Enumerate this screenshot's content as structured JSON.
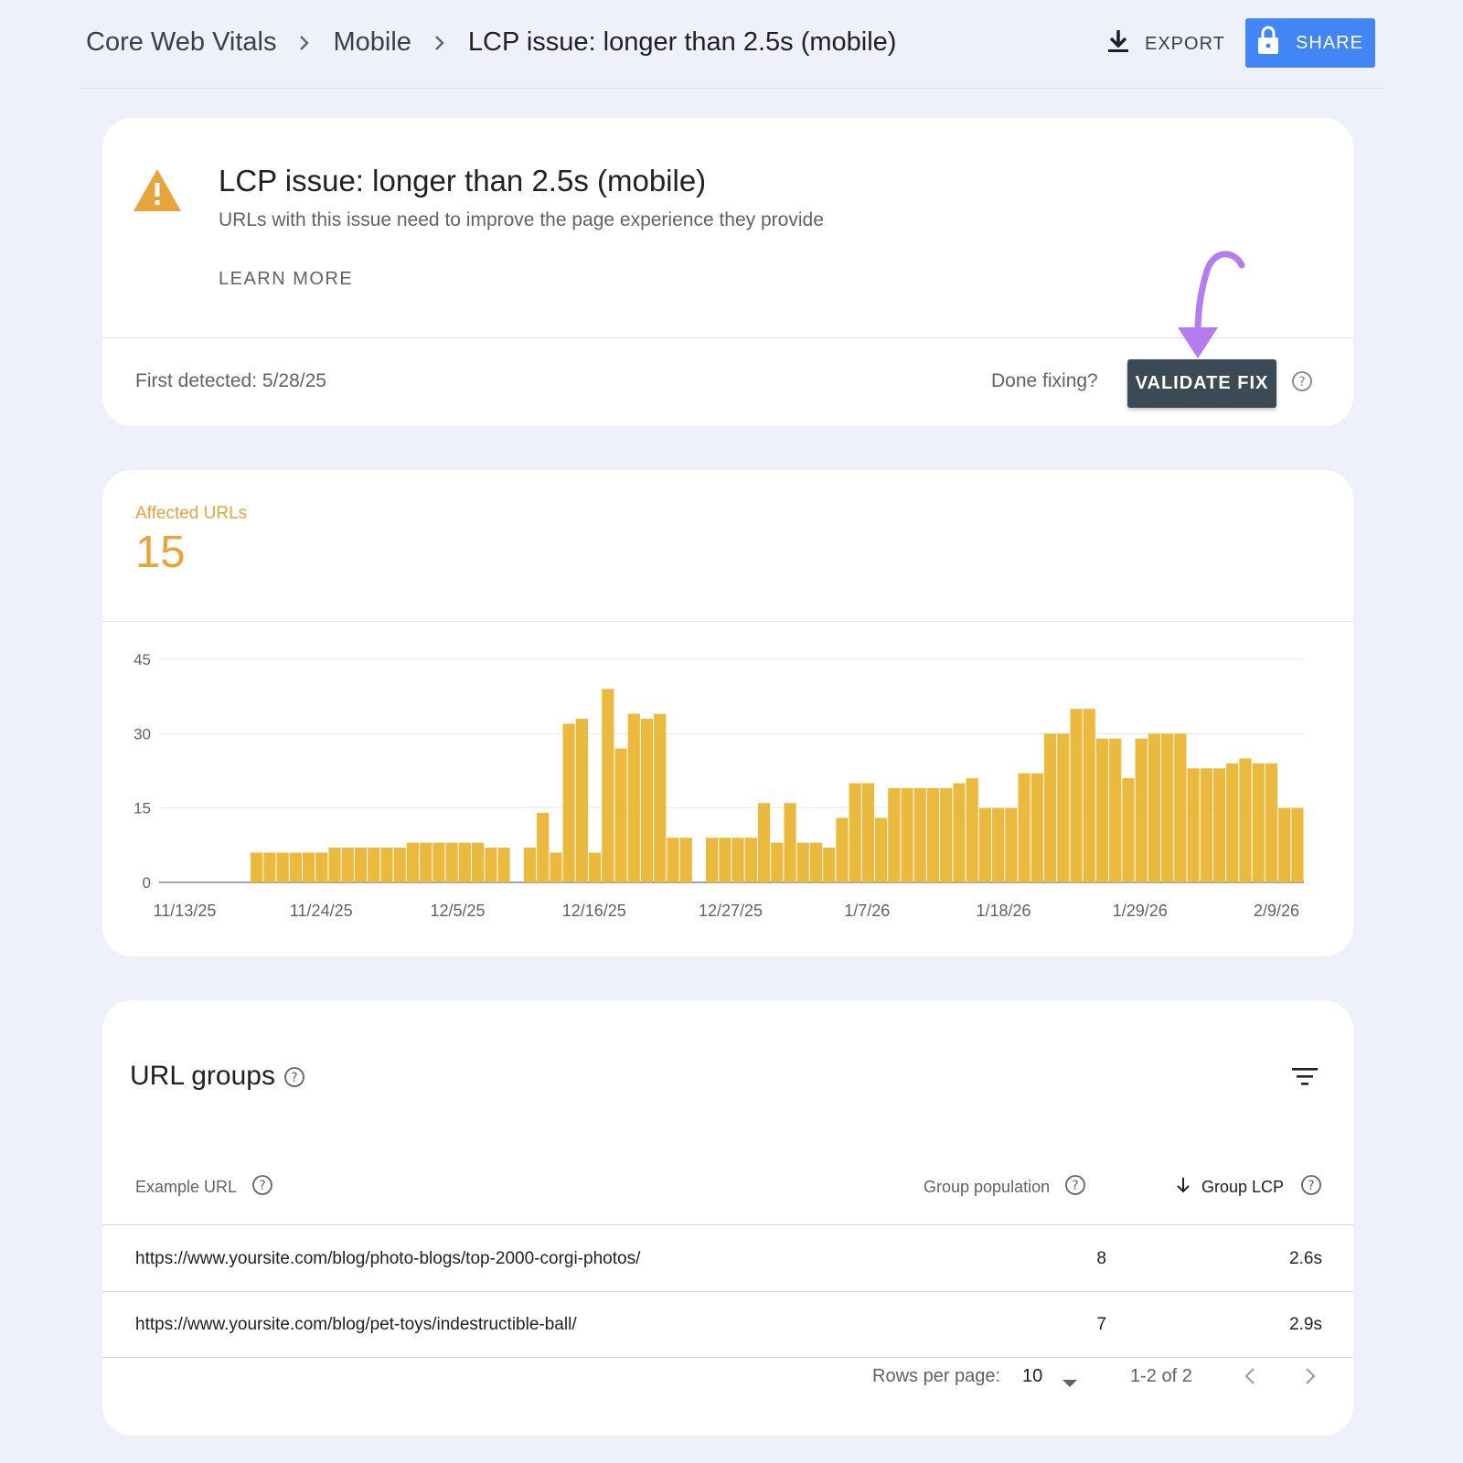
{
  "breadcrumb": {
    "items": [
      "Core Web Vitals",
      "Mobile",
      "LCP issue: longer than 2.5s (mobile)"
    ]
  },
  "toolbar": {
    "export_label": "EXPORT",
    "share_label": "SHARE"
  },
  "issue": {
    "title": "LCP issue: longer than 2.5s (mobile)",
    "description": "URLs with this issue need to improve the page experience they provide",
    "learn_more": "LEARN MORE",
    "first_detected": "First detected: 5/28/25",
    "done_fixing": "Done fixing?",
    "validate_label": "VALIDATE FIX"
  },
  "colors": {
    "warning": "#e8a33d",
    "bar": "#ecb93f",
    "share": "#4285f4",
    "validate": "#3c4a56",
    "annotation": "#b57bef"
  },
  "affected": {
    "label": "Affected URLs",
    "value": "15"
  },
  "chart_data": {
    "type": "bar",
    "y_ticks": [
      "45",
      "30",
      "15",
      "0"
    ],
    "ylim": [
      0,
      45
    ],
    "x_tick_labels": [
      "11/13/25",
      "11/24/25",
      "12/5/25",
      "12/16/25",
      "12/27/25",
      "1/7/26",
      "1/18/26",
      "1/29/26",
      "2/9/26"
    ],
    "values": [
      0,
      0,
      0,
      0,
      0,
      0,
      0,
      6,
      6,
      6,
      6,
      6,
      6,
      7,
      7,
      7,
      7,
      7,
      7,
      8,
      8,
      8,
      8,
      8,
      8,
      7,
      7,
      0,
      7,
      14,
      6,
      32,
      33,
      6,
      39,
      27,
      34,
      33,
      34,
      9,
      9,
      0,
      9,
      9,
      9,
      9,
      16,
      8,
      16,
      8,
      8,
      7,
      13,
      20,
      20,
      13,
      19,
      19,
      19,
      19,
      19,
      20,
      21,
      15,
      15,
      15,
      22,
      22,
      30,
      30,
      35,
      35,
      29,
      29,
      21,
      29,
      30,
      30,
      30,
      23,
      23,
      23,
      24,
      25,
      24,
      24,
      15,
      15
    ],
    "grid": true
  },
  "table": {
    "title": "URL groups",
    "columns": {
      "url": "Example URL",
      "population": "Group population",
      "lcp": "Group LCP"
    },
    "rows": [
      {
        "url": "https://www.yoursite.com/blog/photo-blogs/top-2000-corgi-photos/",
        "population": "8",
        "lcp": "2.6s"
      },
      {
        "url": "https://www.yoursite.com/blog/pet-toys/indestructible-ball/",
        "population": "7",
        "lcp": "2.9s"
      }
    ],
    "pager": {
      "rows_per_page_label": "Rows per page:",
      "rows_per_page": "10",
      "range": "1-2 of 2"
    }
  }
}
